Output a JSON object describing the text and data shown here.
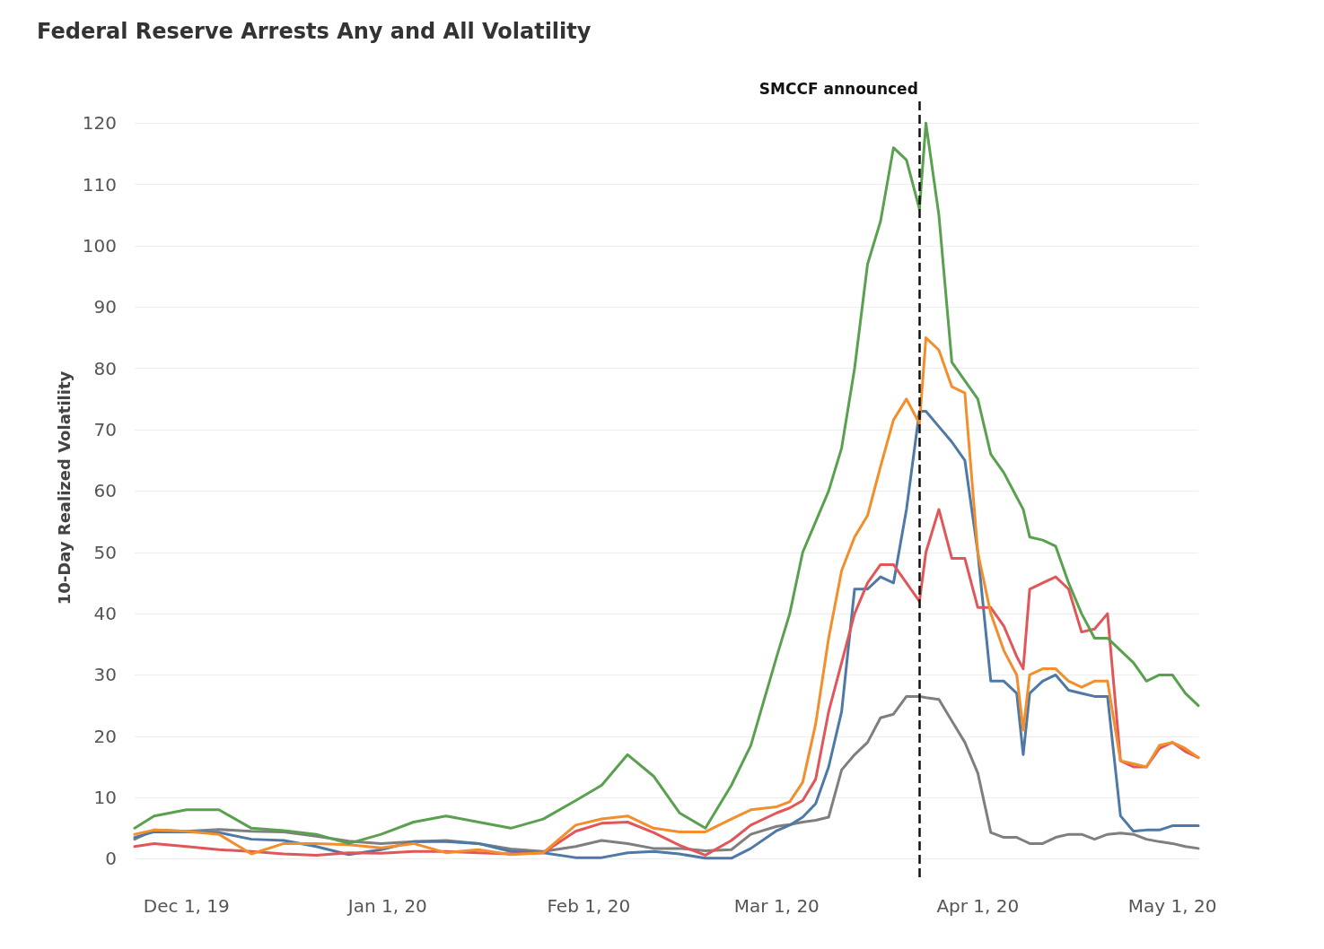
{
  "chart_data": {
    "type": "line",
    "title": "Federal Reserve Arrests Any and All Volatility",
    "ylabel": "10-Day Realized Volatility",
    "x": [
      "2019-11-23",
      "2019-11-26",
      "2019-12-01",
      "2019-12-06",
      "2019-12-11",
      "2019-12-16",
      "2019-12-21",
      "2019-12-26",
      "2019-12-31",
      "2020-01-05",
      "2020-01-10",
      "2020-01-15",
      "2020-01-20",
      "2020-01-25",
      "2020-01-30",
      "2020-02-03",
      "2020-02-07",
      "2020-02-11",
      "2020-02-15",
      "2020-02-19",
      "2020-02-23",
      "2020-02-26",
      "2020-03-01",
      "2020-03-03",
      "2020-03-05",
      "2020-03-07",
      "2020-03-09",
      "2020-03-11",
      "2020-03-13",
      "2020-03-15",
      "2020-03-17",
      "2020-03-19",
      "2020-03-21",
      "2020-03-23",
      "2020-03-24",
      "2020-03-26",
      "2020-03-28",
      "2020-03-30",
      "2020-04-01",
      "2020-04-03",
      "2020-04-05",
      "2020-04-07",
      "2020-04-08",
      "2020-04-09",
      "2020-04-11",
      "2020-04-13",
      "2020-04-15",
      "2020-04-17",
      "2020-04-19",
      "2020-04-21",
      "2020-04-23",
      "2020-04-25",
      "2020-04-27",
      "2020-04-29",
      "2020-05-01",
      "2020-05-03",
      "2020-05-05"
    ],
    "series": [
      {
        "color": "#7f7f7f",
        "values": [
          3.2,
          4.7,
          4.5,
          4.8,
          4.5,
          4.4,
          3.7,
          2.9,
          2.5,
          2.8,
          3,
          2.5,
          1.6,
          1.2,
          2,
          3,
          2.5,
          1.7,
          1.7,
          1.3,
          1.5,
          4,
          5.3,
          5.6,
          6,
          6.3,
          6.8,
          14.5,
          17,
          19,
          23,
          23.6,
          26.5,
          26.5,
          26.3,
          26,
          22.5,
          19,
          14,
          4.3,
          3.5,
          3.5,
          3,
          2.5,
          2.5,
          3.5,
          4,
          4,
          3.2,
          4,
          4.2,
          4,
          3.2,
          2.8,
          2.5,
          2,
          1.7
        ]
      },
      {
        "color": "#4e79a7",
        "values": [
          3.5,
          4.4,
          4.4,
          4.3,
          3.2,
          3,
          2,
          0.7,
          1.5,
          2.8,
          2.8,
          2.5,
          1.2,
          1,
          0.2,
          0.2,
          1,
          1.2,
          0.8,
          0.1,
          0.1,
          1.7,
          4.6,
          5.5,
          6.8,
          9,
          15,
          24,
          44,
          44,
          46,
          45,
          57,
          73,
          73,
          70.5,
          68,
          65,
          50,
          29,
          29,
          27,
          17,
          27,
          29,
          30,
          27.5,
          27,
          26.5,
          26.5,
          7,
          4.5,
          4.7,
          4.7,
          5.4,
          5.4,
          5.4
        ]
      },
      {
        "color": "#e15759",
        "values": [
          2,
          2.5,
          2,
          1.5,
          1.2,
          0.8,
          0.6,
          1,
          0.9,
          1.2,
          1.2,
          1,
          0.8,
          1,
          4.5,
          5.8,
          6,
          4.3,
          2.2,
          0.6,
          3,
          5.5,
          7.5,
          8.3,
          9.5,
          13,
          24,
          32,
          40,
          45,
          48,
          48,
          45,
          42,
          50,
          57,
          49,
          49,
          41,
          41,
          38,
          33,
          31,
          44,
          45,
          46,
          44,
          37,
          37.5,
          40,
          16,
          15,
          15,
          18,
          19,
          17.5,
          16.5
        ]
      },
      {
        "color": "#f28e2b",
        "values": [
          4,
          4.7,
          4.5,
          4,
          0.8,
          2.5,
          2.5,
          2.3,
          1.8,
          2.5,
          1,
          1.5,
          0.7,
          1,
          5.5,
          6.5,
          7,
          5,
          4.4,
          4.4,
          6.5,
          8,
          8.5,
          9.3,
          12.5,
          22,
          36,
          47,
          52.5,
          56,
          64,
          71.6,
          75,
          71,
          85,
          83,
          77,
          76,
          50,
          40,
          34,
          30,
          21,
          30,
          31,
          31,
          29,
          28,
          29,
          29,
          16,
          15.5,
          15,
          18.5,
          19,
          18,
          16.5
        ]
      },
      {
        "color": "#59a14f",
        "values": [
          5,
          7,
          8,
          8,
          5,
          4.6,
          4,
          2.5,
          4,
          6,
          7,
          6,
          5,
          6.5,
          9.5,
          12,
          17,
          13.5,
          7.5,
          5,
          12,
          18.5,
          33,
          40,
          50,
          55,
          60,
          67,
          80,
          97,
          104,
          116,
          114,
          106,
          120,
          105,
          81,
          78,
          75,
          66,
          63,
          59,
          57,
          52.5,
          52,
          51,
          45,
          40,
          36,
          36,
          34,
          32,
          29,
          30,
          30,
          27,
          25
        ]
      }
    ],
    "xlim": [
      "2019-11-23",
      "2020-05-05"
    ],
    "xticks": [
      {
        "value": "2019-12-01",
        "label": "Dec 1, 19"
      },
      {
        "value": "2020-01-01",
        "label": "Jan 1, 20"
      },
      {
        "value": "2020-02-01",
        "label": "Feb 1, 20"
      },
      {
        "value": "2020-03-01",
        "label": "Mar 1, 20"
      },
      {
        "value": "2020-04-01",
        "label": "Apr 1, 20"
      },
      {
        "value": "2020-05-01",
        "label": "May 1, 20"
      }
    ],
    "ylim": [
      -3,
      124
    ],
    "yticks": [
      0,
      10,
      20,
      30,
      40,
      50,
      60,
      70,
      80,
      90,
      100,
      110,
      120
    ],
    "ref_lines": [
      {
        "axis": "x",
        "value": "2020-03-23",
        "label": "SMCCF announced",
        "color": "#111111",
        "line_style": "dashed"
      }
    ],
    "grid": "y",
    "marker": "none",
    "line_style": "solid"
  }
}
